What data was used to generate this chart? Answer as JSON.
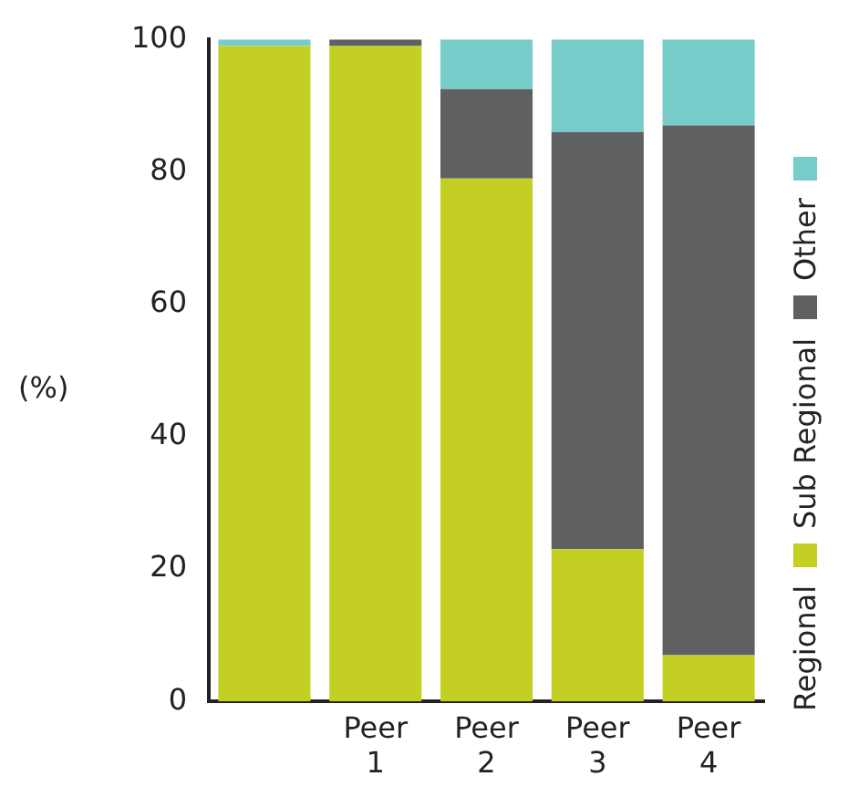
{
  "chart_data": {
    "type": "bar",
    "stacked": true,
    "ylabel": "(%)",
    "categories": [
      null,
      "Peer 1",
      "Peer 2",
      "Peer 3",
      "Peer 4"
    ],
    "series": [
      {
        "name": "Regional",
        "color": "#c3cf22",
        "values": [
          99,
          99,
          79,
          23,
          7
        ]
      },
      {
        "name": "Sub Regional",
        "color": "#5f6062",
        "values": [
          0,
          1,
          13.5,
          63,
          80
        ]
      },
      {
        "name": "Other",
        "color": "#77cbc9",
        "values": [
          1,
          0,
          7.5,
          14,
          13
        ]
      }
    ],
    "ylim": [
      0,
      100
    ],
    "yticks": [
      0,
      20,
      40,
      60,
      80,
      100
    ],
    "grid": false,
    "legend": "right"
  }
}
